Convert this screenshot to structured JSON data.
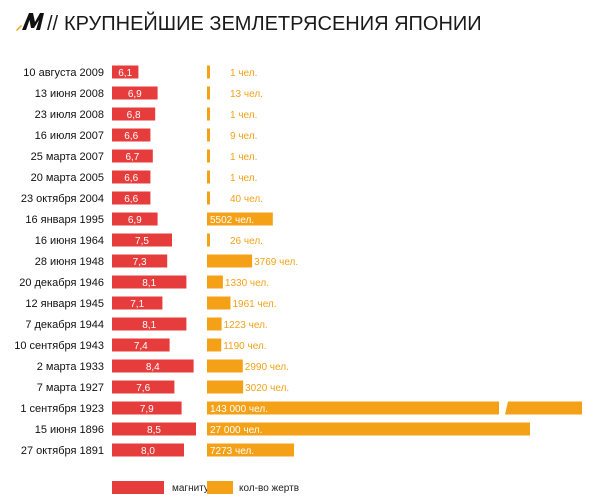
{
  "header": {
    "logo": "M",
    "separator": "//",
    "title": "КРУПНЕЙШИЕ ЗЕМЛЕТРЯСЕНИЯ ЯПОНИИ"
  },
  "colors": {
    "magnitude": "#e63c3c",
    "casualties": "#f4a117",
    "logo": "#111111",
    "logo_accent": "#f4a117"
  },
  "legend": {
    "magnitude_label": "магнитуда",
    "casualties_label": "кол-во жертв"
  },
  "chart_data": {
    "type": "bar",
    "title": "КРУПНЕЙШИЕ ЗЕМЛЕТРЯСЕНИЯ ЯПОНИИ",
    "categories": [
      "10 августа 2009",
      "13 июня 2008",
      "23 июля 2008",
      "16 июля 2007",
      "25 марта 2007",
      "20 марта 2005",
      "23 октября 2004",
      "16 января 1995",
      "16 июня 1964",
      "28 июня 1948",
      "20 декабря 1946",
      "12 января 1945",
      "7 декабря 1944",
      "10 сентября 1943",
      "2 марта 1933",
      "7 марта 1927",
      "1 сентября 1923",
      "15 июня 1896",
      "27 октября 1891"
    ],
    "series": [
      {
        "name": "магнитуда",
        "values": [
          6.1,
          6.9,
          6.8,
          6.6,
          6.7,
          6.6,
          6.6,
          6.9,
          7.5,
          7.3,
          8.1,
          7.1,
          8.1,
          7.4,
          8.4,
          7.6,
          7.9,
          8.5,
          8.0
        ],
        "labels": [
          "6,1",
          "6,9",
          "6,8",
          "6,6",
          "6,7",
          "6,6",
          "6,6",
          "6,9",
          "7,5",
          "7,3",
          "8,1",
          "7,1",
          "8,1",
          "7,4",
          "8,4",
          "7,6",
          "7,9",
          "8,5",
          "8,0"
        ]
      },
      {
        "name": "кол-во жертв",
        "values": [
          1,
          13,
          1,
          9,
          1,
          1,
          40,
          5502,
          26,
          3769,
          1330,
          1961,
          1223,
          1190,
          2990,
          3020,
          143000,
          27000,
          7273
        ],
        "labels": [
          "1 чел.",
          "13 чел.",
          "1 чел.",
          "9 чел.",
          "1 чел.",
          "1 чел.",
          "40 чел.",
          "5502 чел.",
          "26 чел.",
          "3769 чел.",
          "1330 чел.",
          "1961 чел.",
          "1223 чел.",
          "1190 чел.",
          "2990 чел.",
          "3020 чел.",
          "143 000 чел.",
          "27 000 чел.",
          "7273 чел."
        ],
        "broken_axis": [
          false,
          false,
          false,
          false,
          false,
          false,
          false,
          false,
          false,
          false,
          false,
          false,
          false,
          false,
          false,
          false,
          true,
          false,
          false
        ]
      }
    ],
    "grid": false,
    "legend_position": "bottom-left"
  }
}
